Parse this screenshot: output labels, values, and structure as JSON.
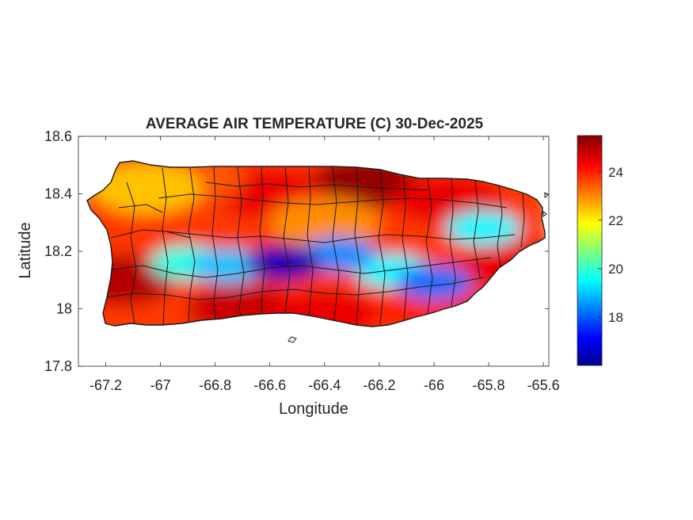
{
  "chart_data": {
    "type": "heatmap",
    "title": "AVERAGE AIR TEMPERATURE (C) 30-Dec-2025",
    "xlabel": "Longitude",
    "ylabel": "Latitude",
    "xlim": [
      -67.3,
      -65.58
    ],
    "ylim": [
      17.8,
      18.6
    ],
    "xticks": [
      -67.2,
      -67,
      -66.8,
      -66.6,
      -66.4,
      -66.2,
      -66,
      -65.8,
      -65.6
    ],
    "xtick_labels": [
      "-67.2",
      "-67",
      "-66.8",
      "-66.6",
      "-66.4",
      "-66.2",
      "-66",
      "-65.8",
      "-65.6"
    ],
    "yticks": [
      17.8,
      18,
      18.2,
      18.4,
      18.6
    ],
    "ytick_labels": [
      "17.8",
      "18",
      "18.2",
      "18.4",
      "18.6"
    ],
    "colorbar": {
      "colormap": "jet",
      "range": [
        16,
        25.5
      ],
      "ticks": [
        18,
        20,
        22,
        24
      ],
      "tick_labels": [
        "18",
        "20",
        "22",
        "24"
      ]
    },
    "temperature_zones": [
      {
        "lon": -66.55,
        "lat": 18.16,
        "value": 16.5
      },
      {
        "lon": -66.75,
        "lat": 18.15,
        "value": 19.0
      },
      {
        "lon": -66.9,
        "lat": 18.16,
        "value": 19.8
      },
      {
        "lon": -66.35,
        "lat": 18.19,
        "value": 18.5
      },
      {
        "lon": -66.15,
        "lat": 18.13,
        "value": 19.5
      },
      {
        "lon": -66.0,
        "lat": 18.09,
        "value": 18.2
      },
      {
        "lon": -65.82,
        "lat": 18.28,
        "value": 19.5
      },
      {
        "lon": -66.6,
        "lat": 18.4,
        "value": 24.5
      },
      {
        "lon": -66.25,
        "lat": 18.44,
        "value": 25.3
      },
      {
        "lon": -65.95,
        "lat": 18.38,
        "value": 24.5
      },
      {
        "lon": -67.15,
        "lat": 18.1,
        "value": 25.0
      },
      {
        "lon": -66.7,
        "lat": 18.0,
        "value": 24.8
      },
      {
        "lon": -66.4,
        "lat": 17.98,
        "value": 24.5
      },
      {
        "lon": -66.0,
        "lat": 17.99,
        "value": 24.0
      },
      {
        "lon": -65.7,
        "lat": 18.15,
        "value": 24.5
      },
      {
        "lon": -67.05,
        "lat": 18.42,
        "value": 22.5
      },
      {
        "lon": -66.9,
        "lat": 18.45,
        "value": 23.5
      },
      {
        "lon": -66.4,
        "lat": 18.3,
        "value": 23.0
      }
    ]
  }
}
